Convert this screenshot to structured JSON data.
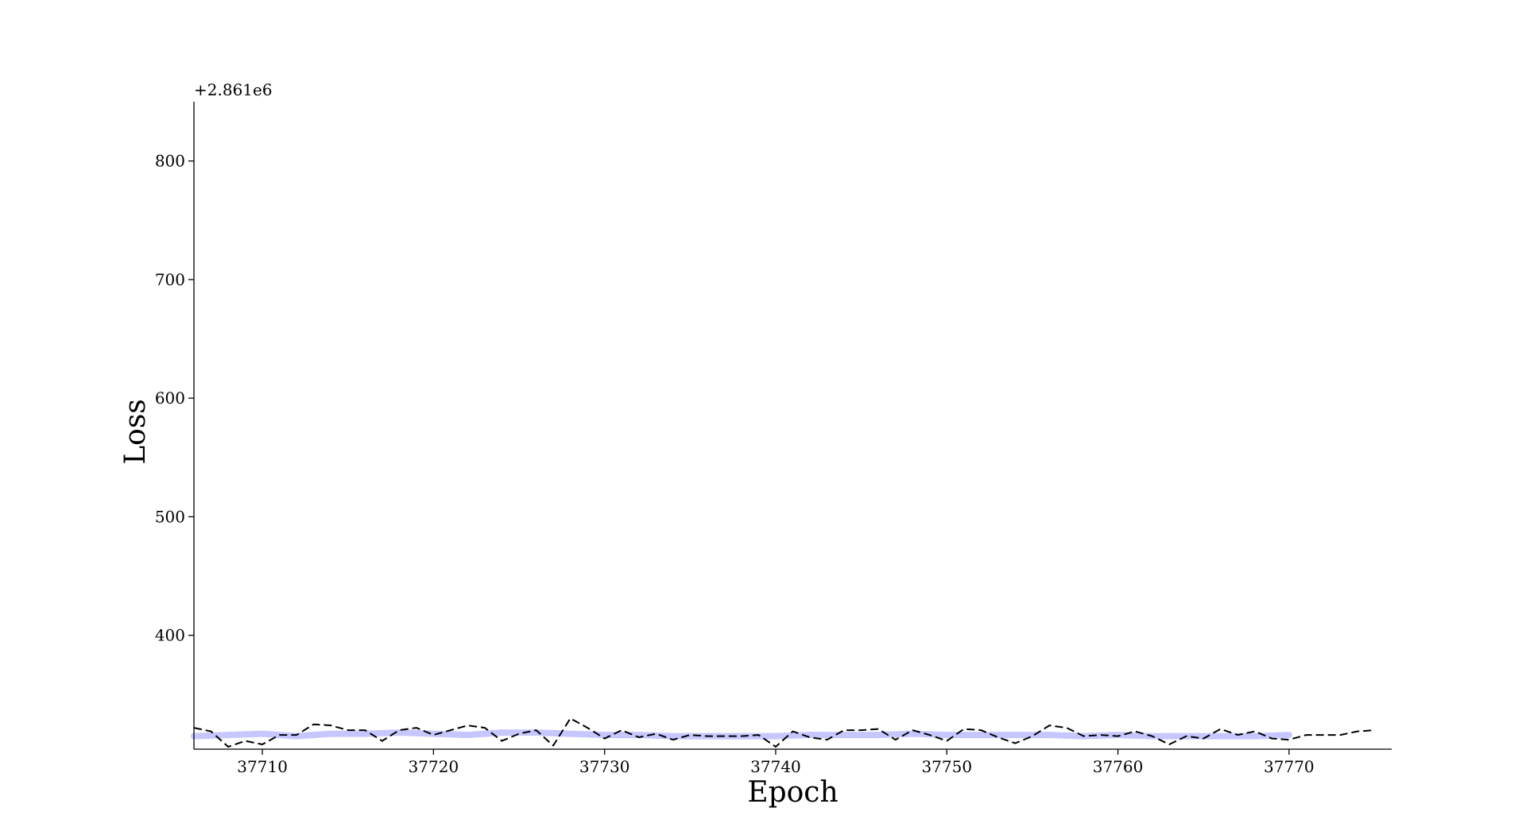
{
  "chart_data": {
    "type": "line",
    "title": "",
    "xlabel": "Epoch",
    "ylabel": "Loss",
    "y_offset_label": "+2.861e6",
    "y_offset": 2861000,
    "xlim": [
      37706,
      37776
    ],
    "ylim": [
      304,
      850
    ],
    "xticks": [
      37710,
      37720,
      37730,
      37740,
      37750,
      37760,
      37770
    ],
    "yticks": [
      400,
      500,
      600,
      700,
      800
    ],
    "grid": false,
    "legend": "none",
    "colors": {
      "smoothed": "#c7c7ff",
      "raw": "#000000"
    },
    "series": [
      {
        "style": "solid-thick",
        "color": "#c7c7ff",
        "x": [
          37706,
          37708,
          37710,
          37712,
          37714,
          37716,
          37718,
          37720,
          37722,
          37724,
          37726,
          37728,
          37730,
          37732,
          37734,
          37736,
          37738,
          37740,
          37742,
          37744,
          37746,
          37748,
          37750,
          37752,
          37754,
          37756,
          37758,
          37760,
          37762,
          37764,
          37766,
          37768,
          37770
        ],
        "y": [
          315,
          316,
          317,
          315,
          317,
          317,
          318,
          317,
          316,
          318,
          318,
          317,
          316,
          316,
          315,
          315,
          315,
          315,
          316,
          316,
          316,
          317,
          316,
          316,
          316,
          316,
          315,
          316,
          315,
          315,
          315,
          315,
          316
        ]
      },
      {
        "style": "dashed",
        "color": "#000000",
        "x": [
          37706,
          37707,
          37708,
          37709,
          37710,
          37711,
          37712,
          37713,
          37714,
          37715,
          37716,
          37717,
          37718,
          37719,
          37720,
          37721,
          37722,
          37723,
          37724,
          37725,
          37726,
          37727,
          37728,
          37729,
          37730,
          37731,
          37732,
          37733,
          37734,
          37735,
          37736,
          37737,
          37738,
          37739,
          37740,
          37741,
          37742,
          37743,
          37744,
          37745,
          37746,
          37747,
          37748,
          37749,
          37750,
          37751,
          37752,
          37753,
          37754,
          37755,
          37756,
          37757,
          37758,
          37759,
          37760,
          37761,
          37762,
          37763,
          37764,
          37765,
          37766,
          37767,
          37768,
          37769,
          37770,
          37771,
          37772,
          37773,
          37774,
          37775
        ],
        "y": [
          322,
          319,
          306,
          311,
          308,
          316,
          316,
          325,
          324,
          320,
          320,
          311,
          320,
          322,
          316,
          320,
          324,
          322,
          311,
          317,
          320,
          307,
          330,
          322,
          313,
          320,
          314,
          317,
          312,
          316,
          315,
          315,
          315,
          316,
          306,
          319,
          314,
          312,
          320,
          320,
          321,
          312,
          320,
          316,
          311,
          321,
          320,
          314,
          309,
          315,
          324,
          322,
          315,
          316,
          315,
          319,
          315,
          308,
          315,
          313,
          321,
          316,
          319,
          313,
          312,
          316,
          316,
          316,
          319,
          320
        ]
      }
    ]
  }
}
